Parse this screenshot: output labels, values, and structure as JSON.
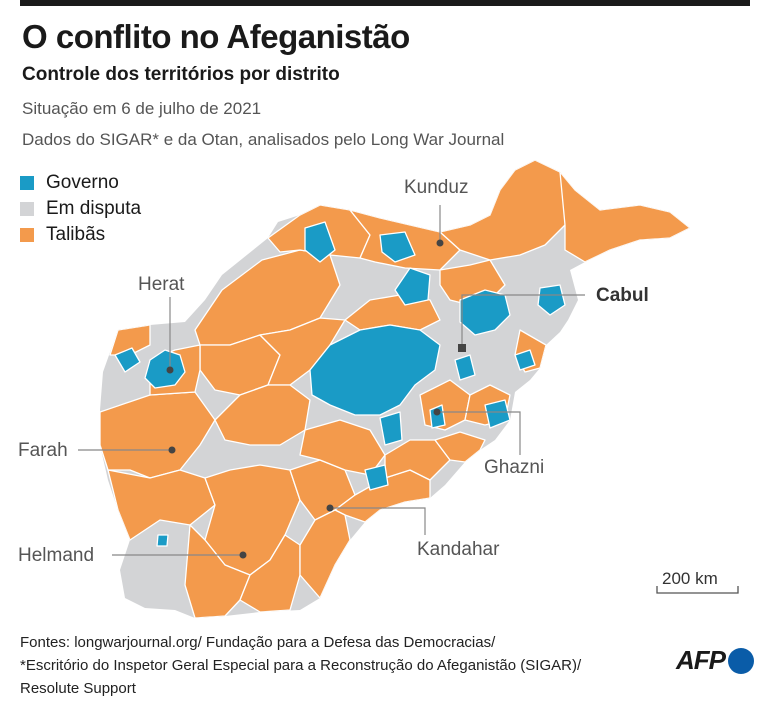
{
  "header": {
    "title": "O conflito no Afeganistão",
    "subtitle": "Controle dos territórios por distrito",
    "date": "Situação em 6 de julho de 2021",
    "source": "Dados do SIGAR* e da Otan, analisados pelo Long War Journal"
  },
  "legend": [
    {
      "label": "Governo",
      "color": "#1a9bc6"
    },
    {
      "label": "Em disputa",
      "color": "#d3d4d6"
    },
    {
      "label": "Talibãs",
      "color": "#f39a4c"
    }
  ],
  "colors": {
    "government": "#1a9bc6",
    "contested": "#d3d4d6",
    "taliban": "#f39a4c",
    "borders": "#ffffff",
    "leader_lines": "#888888"
  },
  "cities": {
    "kunduz": "Kunduz",
    "cabul": "Cabul",
    "herat": "Herat",
    "farah": "Farah",
    "ghazni": "Ghazni",
    "helmand": "Helmand",
    "kandahar": "Kandahar"
  },
  "scale": {
    "label": "200 km"
  },
  "footer": {
    "line1": "Fontes: longwarjournal.org/ Fundação para a Defesa das Democracias/",
    "line2": "*Escritório do Inspetor Geral Especial para a Reconstrução do Afeganistão (SIGAR)/",
    "line3": "Resolute Support"
  },
  "logo": {
    "text": "AFP",
    "icon": "afp-dot-icon"
  }
}
